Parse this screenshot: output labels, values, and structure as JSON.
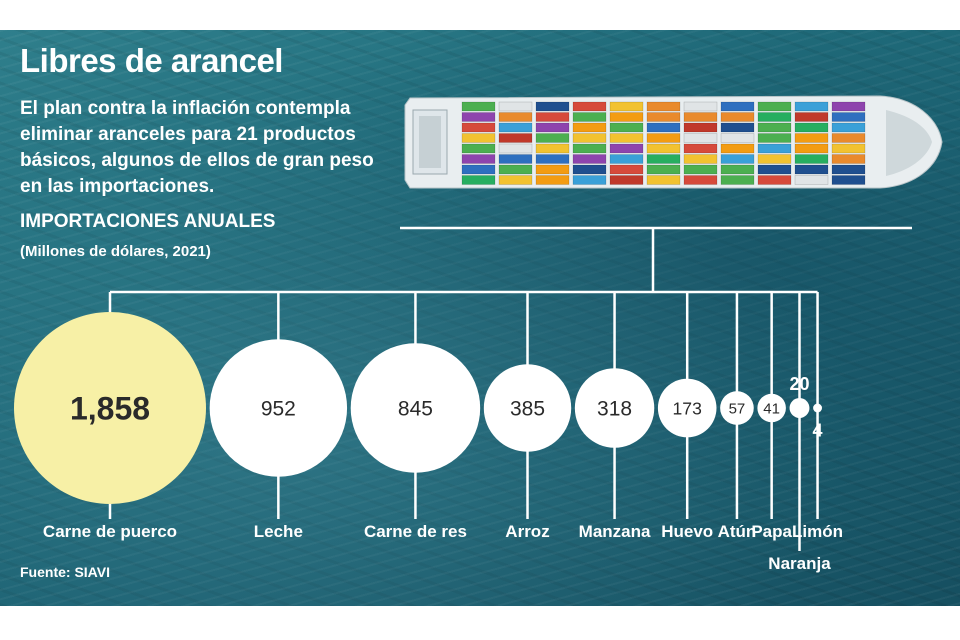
{
  "title": "Libres de arancel",
  "subtitle": "El plan contra la inflación contempla eliminar aranceles para 21 productos básicos, algunos de ellos de gran peso en las importaciones.",
  "section_label": "IMPORTACIONES ANUALES",
  "units": "(Millones de dólares, 2021)",
  "source": "Fuente: SIAVI",
  "colors": {
    "highlight": "#f7f0a6",
    "bubble": "#ffffff",
    "lines": "#ffffff",
    "sea": "#1f6b7a"
  },
  "chart_data": {
    "type": "bubble",
    "categories": [
      "Carne de puerco",
      "Leche",
      "Carne de res",
      "Arroz",
      "Manzana",
      "Huevo",
      "Atún",
      "Papa",
      "Naranja",
      "Limón"
    ],
    "values": [
      1858,
      952,
      845,
      385,
      318,
      173,
      57,
      41,
      20,
      4
    ],
    "value_labels": [
      "1,858",
      "952",
      "845",
      "385",
      "318",
      "173",
      "57",
      "41",
      "20",
      "4"
    ]
  }
}
